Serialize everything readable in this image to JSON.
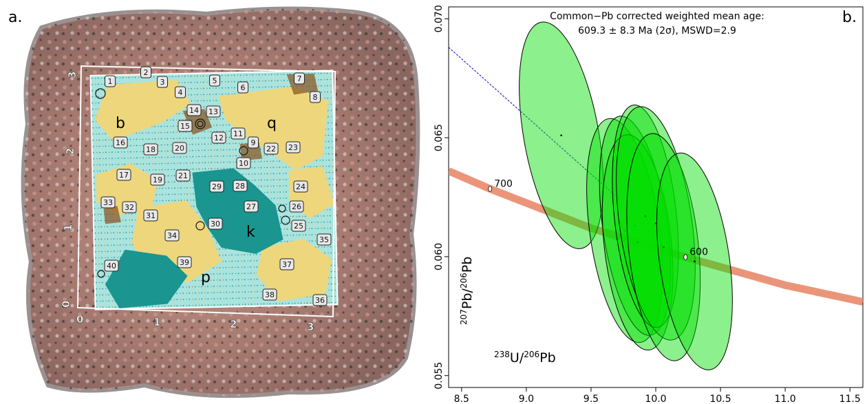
{
  "panel_a": {
    "label": "a.",
    "x_ticks": [
      "0",
      "1",
      "2",
      "3"
    ],
    "y_ticks": [
      "0",
      "1",
      "2",
      "3"
    ],
    "minerals": [
      "b",
      "q",
      "k",
      "p"
    ],
    "spots": [
      "1",
      "2",
      "3",
      "4",
      "5",
      "6",
      "7",
      "8",
      "9",
      "10",
      "11",
      "12",
      "13",
      "14",
      "15",
      "16",
      "17",
      "18",
      "19",
      "20",
      "21",
      "22",
      "23",
      "24",
      "25",
      "26",
      "27",
      "28",
      "29",
      "30",
      "31",
      "32",
      "33",
      "34",
      "35",
      "36",
      "37",
      "38",
      "39",
      "40"
    ],
    "colors": {
      "quartz": "#eed67c",
      "kfeldspar": "#1a9590",
      "plagioclase": "#a8e4e0",
      "biotite": "#8a5a2a",
      "rock": "#b08a80"
    }
  },
  "panel_b": {
    "label": "b.",
    "title_line1": "Common−Pb corrected weighted mean age:",
    "title_line2": "609.3 ± 8.3 Ma (2σ), MSWD=2.9",
    "colors": {
      "concordia": "#e8896a",
      "ellipse_fill": "#00dd00",
      "ellipse_edge": "#000000",
      "isochron": "#0000cc"
    }
  },
  "chart_data": {
    "type": "scatter",
    "title": "Common−Pb corrected weighted mean age:\n609.3 ± 8.3 Ma (2σ), MSWD=2.9",
    "xlabel": "238U/206Pb",
    "ylabel": "207Pb/206Pb",
    "xlim": [
      8.4,
      11.6
    ],
    "ylim": [
      0.0545,
      0.0705
    ],
    "x_ticks": [
      8.5,
      9.0,
      9.5,
      10.0,
      10.5,
      11.0,
      11.5
    ],
    "x_tick_labels": [
      "8.5",
      "9.0",
      "9.5",
      "10.0",
      "10.5",
      "11.0",
      "11.5"
    ],
    "y_ticks": [
      0.055,
      0.06,
      0.065,
      0.07
    ],
    "y_tick_labels": [
      "0.055",
      "0.060",
      "0.065",
      "0.070"
    ],
    "concordia_age_labels": [
      {
        "label": "700",
        "x": 8.72,
        "y": 0.06285
      },
      {
        "label": "600",
        "x": 10.23,
        "y": 0.05998
      }
    ],
    "isochron": {
      "from": [
        8.4,
        0.0688
      ],
      "to": [
        9.7,
        0.0625
      ]
    },
    "ellipses": [
      {
        "x": 9.27,
        "y": 0.0651,
        "rx": 0.29,
        "ry": 0.00483,
        "angle": -10
      },
      {
        "x": 9.76,
        "y": 0.0611,
        "rx": 0.27,
        "ry": 0.00475,
        "angle": -8
      },
      {
        "x": 9.84,
        "y": 0.0613,
        "rx": 0.25,
        "ry": 0.00465,
        "angle": -8
      },
      {
        "x": 9.86,
        "y": 0.0606,
        "rx": 0.26,
        "ry": 0.00455,
        "angle": -6
      },
      {
        "x": 9.92,
        "y": 0.0617,
        "rx": 0.24,
        "ry": 0.0047,
        "angle": -6
      },
      {
        "x": 10.0,
        "y": 0.0614,
        "rx": 0.28,
        "ry": 0.00495,
        "angle": -8
      },
      {
        "x": 10.06,
        "y": 0.0604,
        "rx": 0.27,
        "ry": 0.0048,
        "angle": -6
      },
      {
        "x": 10.3,
        "y": 0.0598,
        "rx": 0.27,
        "ry": 0.0046,
        "angle": -8
      }
    ],
    "grid": false
  }
}
